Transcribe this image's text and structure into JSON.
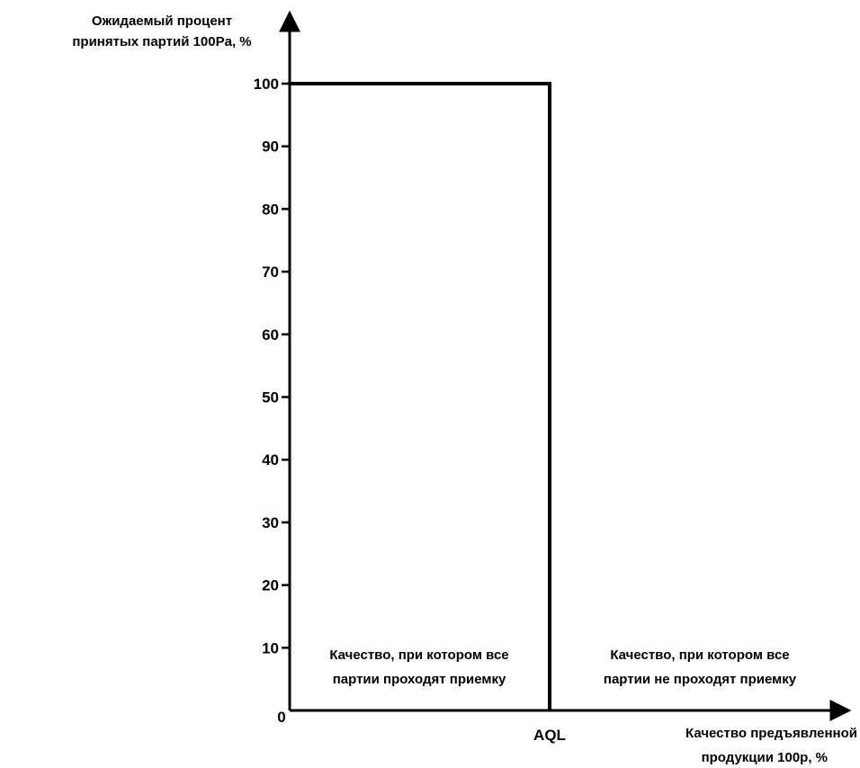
{
  "chart_data": {
    "type": "line",
    "title": "",
    "ylabel": [
      "Ожидаемый процент",
      "принятых партий 100Pa, %"
    ],
    "xlabel": [
      "Качество предъявленной",
      "продукции 100p, %"
    ],
    "ylim": [
      0,
      100
    ],
    "yticks": [
      10,
      20,
      30,
      40,
      50,
      60,
      70,
      80,
      90,
      100
    ],
    "origin_label": "0",
    "x_marker": "AQL",
    "series": [
      {
        "points": [
          {
            "x": 0,
            "y": 100
          },
          {
            "x": "AQL",
            "y": 100
          },
          {
            "x": "AQL",
            "y": 0
          }
        ]
      }
    ],
    "annotations": {
      "left": [
        "Качество, при котором все",
        "партии проходят приемку"
      ],
      "right": [
        "Качество, при котором все",
        "партии не проходят приемку"
      ]
    },
    "grid": false,
    "legend": "none"
  }
}
